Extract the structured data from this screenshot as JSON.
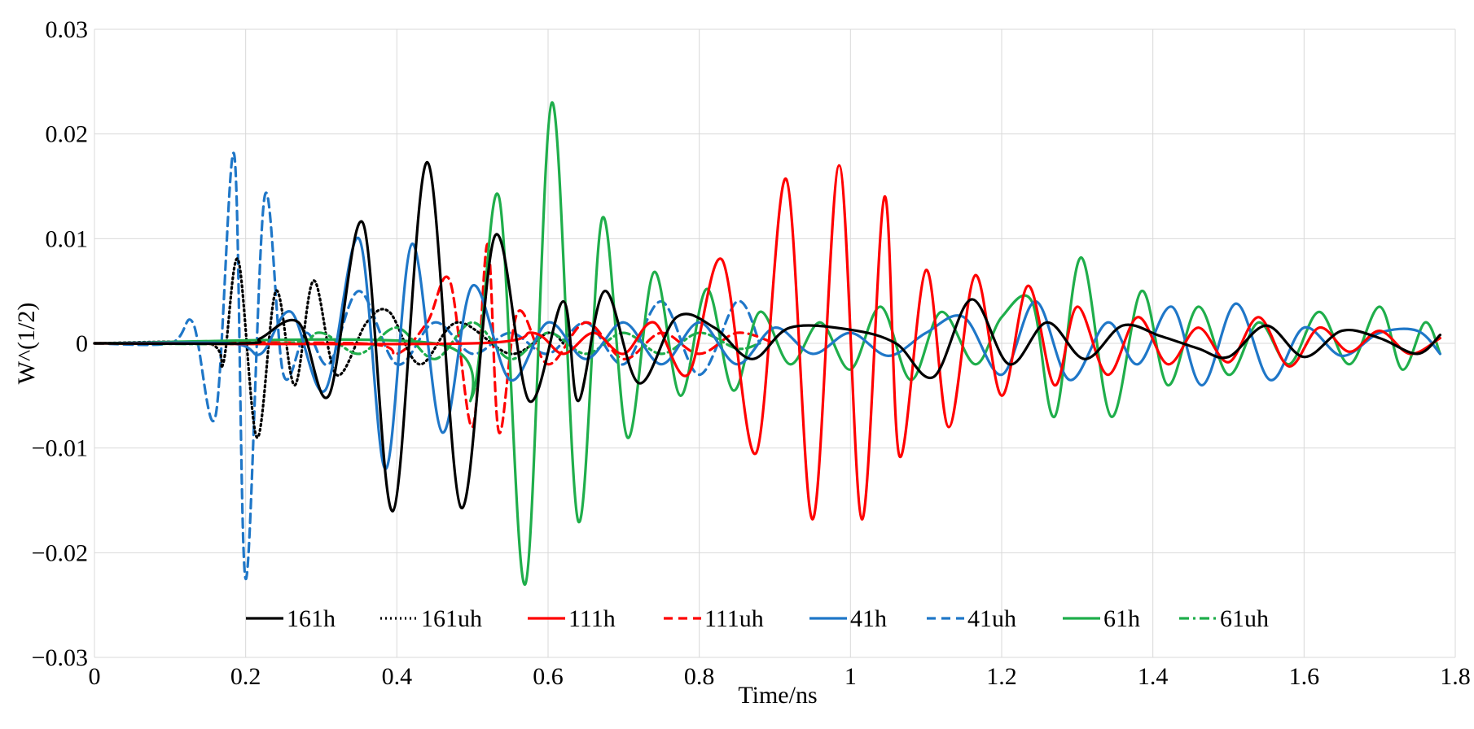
{
  "chart_data": {
    "type": "line",
    "title": "",
    "xlabel": "Time/ns",
    "ylabel": "W^(1/2)",
    "xlim": [
      0,
      1.8
    ],
    "ylim": [
      -0.03,
      0.03
    ],
    "x_ticks": [
      0,
      0.2,
      0.4,
      0.6,
      0.8,
      1,
      1.2,
      1.4,
      1.6,
      1.8
    ],
    "x_tick_labels": [
      "0",
      "0.2",
      "0.4",
      "0.6",
      "0.8",
      "1",
      "1.2",
      "1.4",
      "1.6",
      "1.8"
    ],
    "y_ticks": [
      0.03,
      0.02,
      0.01,
      0,
      -0.01,
      -0.02,
      -0.03
    ],
    "y_tick_labels": [
      "0.03",
      "0.02",
      "0.01",
      "0",
      "−0.01",
      "−0.02",
      "−0.03"
    ],
    "grid": true,
    "legend_position": "bottom-inside",
    "series": [
      {
        "name": "161h",
        "color": "#000000",
        "dash": "solid",
        "x": [
          0,
          0.2,
          0.22,
          0.27,
          0.31,
          0.355,
          0.395,
          0.44,
          0.485,
          0.53,
          0.575,
          0.62,
          0.64,
          0.675,
          0.72,
          0.77,
          0.82,
          0.87,
          0.92,
          1.0,
          1.06,
          1.11,
          1.16,
          1.21,
          1.26,
          1.31,
          1.36,
          1.41,
          1.46,
          1.5,
          1.55,
          1.6,
          1.65,
          1.7,
          1.75,
          1.78
        ],
        "y": [
          0,
          0,
          0.0005,
          0.002,
          -0.005,
          0.0115,
          -0.016,
          0.0173,
          -0.0157,
          0.0103,
          -0.0055,
          0.004,
          -0.0055,
          0.005,
          -0.0038,
          0.0025,
          0.0015,
          -0.0015,
          0.0015,
          0.0013,
          0.0,
          -0.0032,
          0.0042,
          -0.002,
          0.002,
          -0.0015,
          0.0017,
          0.0007,
          -0.0005,
          -0.0013,
          0.0017,
          -0.0013,
          0.0012,
          0.0005,
          -0.001,
          0.0008
        ]
      },
      {
        "name": "161uh",
        "color": "#000000",
        "dash": "dotted",
        "x": [
          0,
          0.15,
          0.17,
          0.19,
          0.215,
          0.24,
          0.265,
          0.29,
          0.32,
          0.36,
          0.39,
          0.43,
          0.48,
          0.55,
          0.6,
          0.62
        ],
        "y": [
          0,
          0,
          -0.002,
          0.008,
          -0.009,
          0.005,
          -0.004,
          0.006,
          -0.003,
          0.002,
          0.003,
          -0.002,
          0.002,
          -0.001,
          0.001,
          0
        ]
      },
      {
        "name": "111h",
        "color": "#ff0000",
        "dash": "solid",
        "x": [
          0,
          0.5,
          0.58,
          0.62,
          0.66,
          0.7,
          0.74,
          0.785,
          0.83,
          0.875,
          0.915,
          0.95,
          0.985,
          1.015,
          1.045,
          1.065,
          1.1,
          1.13,
          1.165,
          1.2,
          1.235,
          1.27,
          1.3,
          1.34,
          1.38,
          1.42,
          1.46,
          1.5,
          1.54,
          1.58,
          1.62,
          1.66,
          1.7,
          1.74,
          1.78
        ],
        "y": [
          0,
          0,
          0.001,
          -0.001,
          0.001,
          -0.001,
          0.002,
          -0.003,
          0.008,
          -0.0105,
          0.0157,
          -0.0168,
          0.017,
          -0.0168,
          0.014,
          -0.0108,
          0.007,
          -0.008,
          0.0065,
          -0.005,
          0.0055,
          -0.004,
          0.0035,
          -0.003,
          0.0025,
          -0.002,
          0.0015,
          -0.0018,
          0.0025,
          -0.0022,
          0.0015,
          -0.0008,
          0.0012,
          -0.001,
          0.0005
        ]
      },
      {
        "name": "111uh",
        "color": "#ff0000",
        "dash": "dashed",
        "x": [
          0,
          0.35,
          0.4,
          0.44,
          0.47,
          0.5,
          0.52,
          0.535,
          0.56,
          0.6,
          0.65,
          0.7,
          0.75,
          0.8,
          0.85,
          0.9
        ],
        "y": [
          0,
          0,
          -0.001,
          0.002,
          0.006,
          -0.008,
          0.0095,
          -0.0085,
          0.003,
          -0.002,
          0.002,
          -0.0015,
          0.001,
          -0.001,
          0.001,
          0
        ]
      },
      {
        "name": "41h",
        "color": "#1f77c8",
        "dash": "solid",
        "x": [
          0,
          0.18,
          0.22,
          0.26,
          0.305,
          0.35,
          0.385,
          0.42,
          0.46,
          0.5,
          0.55,
          0.6,
          0.65,
          0.7,
          0.75,
          0.8,
          0.85,
          0.9,
          0.95,
          1.0,
          1.05,
          1.1,
          1.15,
          1.2,
          1.245,
          1.29,
          1.34,
          1.38,
          1.425,
          1.465,
          1.51,
          1.555,
          1.6,
          1.65,
          1.7,
          1.75,
          1.78
        ],
        "y": [
          0,
          0,
          -0.001,
          0.003,
          -0.0045,
          0.01,
          -0.012,
          0.0095,
          -0.0085,
          0.0055,
          -0.0035,
          0.002,
          -0.0015,
          0.002,
          -0.002,
          0.002,
          -0.002,
          0.0015,
          -0.001,
          0.001,
          -0.0012,
          0.001,
          0.0025,
          -0.003,
          0.004,
          -0.0035,
          0.002,
          -0.002,
          0.0035,
          -0.004,
          0.0038,
          -0.0035,
          0.0015,
          -0.0012,
          0.001,
          0.0012,
          -0.001
        ]
      },
      {
        "name": "41uh",
        "color": "#1f77c8",
        "dash": "dashed",
        "x": [
          0,
          0.1,
          0.13,
          0.16,
          0.185,
          0.2,
          0.225,
          0.25,
          0.28,
          0.31,
          0.35,
          0.4,
          0.45,
          0.5,
          0.55,
          0.6,
          0.65,
          0.7,
          0.75,
          0.8,
          0.85,
          0.88
        ],
        "y": [
          0,
          0,
          0.002,
          -0.007,
          0.018,
          -0.0225,
          0.014,
          -0.003,
          0.001,
          -0.002,
          0.005,
          -0.002,
          0.002,
          -0.001,
          0.001,
          -0.001,
          0.002,
          -0.002,
          0.004,
          -0.003,
          0.004,
          0
        ]
      },
      {
        "name": "61h",
        "color": "#1fae4b",
        "dash": "solid",
        "x": [
          0,
          0.45,
          0.5,
          0.535,
          0.57,
          0.605,
          0.64,
          0.672,
          0.705,
          0.74,
          0.775,
          0.81,
          0.845,
          0.88,
          0.92,
          0.96,
          1.0,
          1.04,
          1.08,
          1.12,
          1.165,
          1.2,
          1.24,
          1.27,
          1.305,
          1.345,
          1.385,
          1.42,
          1.46,
          1.5,
          1.54,
          1.58,
          1.62,
          1.66,
          1.7,
          1.73,
          1.76,
          1.78
        ],
        "y": [
          0,
          0,
          -0.005,
          0.014,
          -0.023,
          0.023,
          -0.017,
          0.012,
          -0.009,
          0.0068,
          -0.005,
          0.0052,
          -0.0045,
          0.003,
          -0.002,
          0.002,
          -0.0025,
          0.0035,
          -0.0035,
          0.003,
          -0.002,
          0.0025,
          0.004,
          -0.007,
          0.0082,
          -0.007,
          0.005,
          -0.004,
          0.0035,
          -0.003,
          0.002,
          -0.002,
          0.003,
          -0.002,
          0.0035,
          -0.0025,
          0.002,
          -0.001
        ]
      },
      {
        "name": "61uh",
        "color": "#1fae4b",
        "dash": "dashdot",
        "x": [
          0,
          0.25,
          0.3,
          0.35,
          0.4,
          0.45,
          0.5,
          0.55,
          0.6,
          0.65,
          0.7,
          0.75,
          0.8,
          0.85,
          0.88
        ],
        "y": [
          0,
          0,
          0.001,
          -0.001,
          0.0015,
          -0.0015,
          0.002,
          -0.0015,
          0.001,
          -0.001,
          0.001,
          -0.001,
          0.001,
          -0.0005,
          0
        ]
      }
    ]
  }
}
